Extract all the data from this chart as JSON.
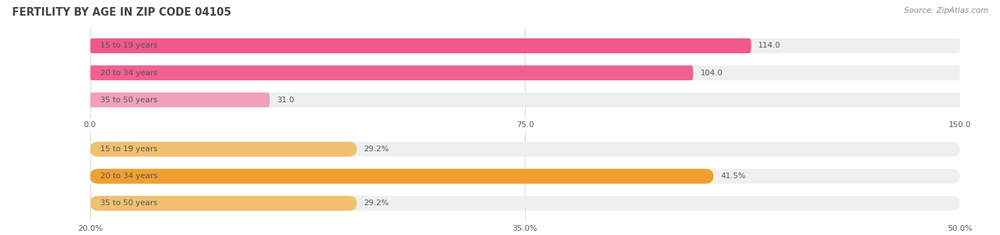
{
  "title": "FERTILITY BY AGE IN ZIP CODE 04105",
  "source": "Source: ZipAtlas.com",
  "top_chart": {
    "categories": [
      "15 to 19 years",
      "20 to 34 years",
      "35 to 50 years"
    ],
    "values": [
      114.0,
      104.0,
      31.0
    ],
    "value_labels": [
      "114.0",
      "104.0",
      "31.0"
    ],
    "bar_color_dark": [
      "#f0598a",
      "#f06090",
      "#f0a0bc"
    ],
    "bar_color_light": [
      "#f9c0d5",
      "#f9c0d5",
      "#f9d0e0"
    ],
    "xlim": [
      0,
      150
    ],
    "xticks": [
      0.0,
      75.0,
      150.0
    ],
    "xtick_labels": [
      "0.0",
      "75.0",
      "150.0"
    ],
    "bar_bg_color": "#efefef"
  },
  "bottom_chart": {
    "categories": [
      "15 to 19 years",
      "20 to 34 years",
      "35 to 50 years"
    ],
    "values": [
      29.2,
      41.5,
      29.2
    ],
    "value_labels": [
      "29.2%",
      "41.5%",
      "29.2%"
    ],
    "bar_color_dark": [
      "#f0c070",
      "#f0a030",
      "#f0c070"
    ],
    "bar_color_light": [
      "#fad8a0",
      "#fad8a0",
      "#fad8a0"
    ],
    "xlim": [
      20.0,
      50.0
    ],
    "xticks": [
      20.0,
      35.0,
      50.0
    ],
    "xtick_labels": [
      "20.0%",
      "35.0%",
      "50.0%"
    ],
    "bar_bg_color": "#efefef"
  },
  "label_color": "#555555",
  "title_color": "#444444",
  "source_color": "#888888",
  "bg_color": "#ffffff",
  "bar_height": 0.55,
  "grid_color": "#d8d8d8"
}
